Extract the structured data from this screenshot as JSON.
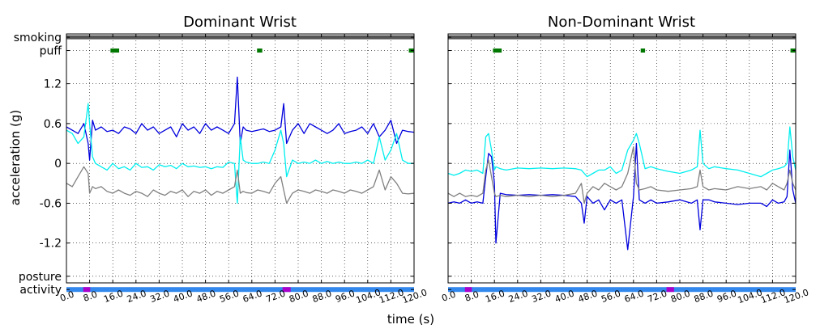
{
  "chart_data": [
    {
      "type": "line",
      "title": "Dominant Wrist",
      "xlabel": "",
      "ylabel": "acceleration (g)",
      "xlim": [
        0,
        120
      ],
      "ylim": [
        -1.8,
        1.95
      ],
      "x_ticks": [
        "0.0",
        "8.0",
        "16.0",
        "24.0",
        "32.0",
        "40.0",
        "48.0",
        "56.0",
        "64.0",
        "72.0",
        "80.0",
        "88.0",
        "96.0",
        "104.0",
        "112.0",
        "120.0"
      ],
      "y_ticks": [
        {
          "v": 1.2,
          "label": "1.2"
        },
        {
          "v": 0.6,
          "label": "0.6"
        },
        {
          "v": 0,
          "label": "0"
        },
        {
          "v": -0.6,
          "label": "-0.6"
        },
        {
          "v": -1.2,
          "label": "-1.2"
        }
      ],
      "band_labels": [
        {
          "v": 1.9,
          "label": "smoking"
        },
        {
          "v": 1.7,
          "label": "puff"
        },
        {
          "v": -1.7,
          "label": "posture"
        },
        {
          "v": -1.9,
          "label": "activity"
        }
      ],
      "grid": true,
      "smoking": {
        "y": 1.9,
        "segments": [
          [
            0,
            120
          ]
        ],
        "color": "#555555"
      },
      "puff": {
        "y": 1.7,
        "segments": [
          [
            15.2,
            18.2
          ],
          [
            65.8,
            67.6
          ],
          [
            118.2,
            120
          ]
        ],
        "color": "#007700"
      },
      "posture": {
        "y": -1.9,
        "segments": [
          [
            5.8,
            8.2
          ],
          [
            74.6,
            77.4
          ]
        ],
        "color": "#aa00cc"
      },
      "activity": {
        "y": -1.9,
        "segments": [
          [
            0,
            120
          ]
        ],
        "color": "#3388ee"
      },
      "series": [
        {
          "color": "#0000dd",
          "x": [
            0,
            2,
            4,
            6,
            7.5,
            8,
            9,
            10,
            12,
            14,
            16,
            18,
            20,
            22,
            24,
            26,
            28,
            30,
            32,
            34,
            36,
            38,
            40,
            42,
            44,
            46,
            48,
            50,
            52,
            54,
            56,
            58,
            59,
            60,
            61,
            62,
            64,
            66,
            68,
            70,
            72,
            74,
            75,
            76,
            78,
            80,
            82,
            84,
            86,
            88,
            90,
            92,
            94,
            96,
            98,
            100,
            102,
            104,
            106,
            108,
            110,
            112,
            114,
            116,
            118,
            120
          ],
          "y": [
            0.55,
            0.5,
            0.45,
            0.6,
            0.3,
            0.05,
            0.65,
            0.5,
            0.55,
            0.48,
            0.5,
            0.45,
            0.55,
            0.52,
            0.45,
            0.6,
            0.5,
            0.55,
            0.45,
            0.5,
            0.55,
            0.4,
            0.6,
            0.5,
            0.55,
            0.45,
            0.6,
            0.5,
            0.55,
            0.5,
            0.45,
            0.6,
            1.3,
            0.3,
            0.55,
            0.5,
            0.48,
            0.5,
            0.52,
            0.48,
            0.5,
            0.55,
            0.9,
            0.3,
            0.5,
            0.6,
            0.45,
            0.6,
            0.55,
            0.5,
            0.45,
            0.5,
            0.6,
            0.45,
            0.48,
            0.5,
            0.55,
            0.45,
            0.6,
            0.4,
            0.5,
            0.65,
            0.3,
            0.5,
            0.48,
            0.47
          ]
        },
        {
          "color": "#00eeee",
          "x": [
            0,
            2,
            4,
            6,
            7.5,
            8,
            9,
            10,
            12,
            14,
            16,
            18,
            20,
            22,
            24,
            26,
            28,
            30,
            32,
            34,
            36,
            38,
            40,
            42,
            44,
            46,
            48,
            50,
            52,
            54,
            56,
            58,
            59,
            60,
            61,
            62,
            64,
            66,
            68,
            70,
            72,
            74,
            75,
            76,
            78,
            80,
            82,
            84,
            86,
            88,
            90,
            92,
            94,
            96,
            98,
            100,
            102,
            104,
            106,
            108,
            110,
            112,
            114,
            116,
            118,
            120
          ],
          "y": [
            0.5,
            0.45,
            0.3,
            0.4,
            0.9,
            0.6,
            0.1,
            0.0,
            -0.05,
            -0.1,
            0.0,
            -0.08,
            -0.05,
            -0.1,
            0.0,
            -0.06,
            -0.05,
            -0.1,
            -0.02,
            -0.05,
            -0.03,
            -0.08,
            0.0,
            -0.05,
            -0.04,
            -0.06,
            -0.05,
            -0.08,
            -0.05,
            -0.06,
            0.02,
            0.0,
            -0.6,
            0.4,
            0.05,
            0.02,
            0.0,
            0.0,
            0.02,
            0.0,
            0.2,
            0.5,
            0.3,
            -0.2,
            0.05,
            0.0,
            0.02,
            0.0,
            0.05,
            0.0,
            0.03,
            0.0,
            0.02,
            0.0,
            0.0,
            0.02,
            0.0,
            0.05,
            0.0,
            0.4,
            0.05,
            0.2,
            0.45,
            0.05,
            0.0,
            0.0
          ]
        },
        {
          "color": "#808080",
          "x": [
            0,
            2,
            4,
            6,
            7.5,
            8,
            9,
            10,
            12,
            14,
            16,
            18,
            20,
            22,
            24,
            26,
            28,
            30,
            32,
            34,
            36,
            38,
            40,
            42,
            44,
            46,
            48,
            50,
            52,
            54,
            56,
            58,
            59,
            60,
            61,
            62,
            64,
            66,
            68,
            70,
            72,
            74,
            75,
            76,
            78,
            80,
            82,
            84,
            86,
            88,
            90,
            92,
            94,
            96,
            98,
            100,
            102,
            104,
            106,
            108,
            110,
            112,
            114,
            116,
            118,
            120
          ],
          "y": [
            -0.3,
            -0.35,
            -0.2,
            -0.05,
            -0.15,
            -0.45,
            -0.35,
            -0.38,
            -0.35,
            -0.42,
            -0.45,
            -0.4,
            -0.45,
            -0.48,
            -0.42,
            -0.45,
            -0.5,
            -0.4,
            -0.45,
            -0.48,
            -0.42,
            -0.45,
            -0.4,
            -0.5,
            -0.42,
            -0.45,
            -0.4,
            -0.48,
            -0.42,
            -0.45,
            -0.4,
            -0.35,
            -0.1,
            -0.45,
            -0.42,
            -0.44,
            -0.45,
            -0.4,
            -0.42,
            -0.45,
            -0.3,
            -0.2,
            -0.4,
            -0.6,
            -0.45,
            -0.4,
            -0.42,
            -0.45,
            -0.4,
            -0.42,
            -0.45,
            -0.4,
            -0.42,
            -0.45,
            -0.4,
            -0.42,
            -0.45,
            -0.4,
            -0.35,
            -0.1,
            -0.4,
            -0.2,
            -0.3,
            -0.45,
            -0.46,
            -0.45
          ]
        }
      ]
    },
    {
      "type": "line",
      "title": "Non-Dominant Wrist",
      "xlabel": "",
      "ylabel": "",
      "xlim": [
        0,
        120
      ],
      "ylim": [
        -1.8,
        1.95
      ],
      "x_ticks": [
        "0.0",
        "8.0",
        "16.0",
        "24.0",
        "32.0",
        "40.0",
        "48.0",
        "56.0",
        "64.0",
        "72.0",
        "80.0",
        "88.0",
        "96.0",
        "104.0",
        "112.0",
        "120.0"
      ],
      "grid": true,
      "smoking": {
        "y": 1.9,
        "segments": [
          [
            0,
            120
          ]
        ],
        "color": "#555555"
      },
      "puff": {
        "y": 1.7,
        "segments": [
          [
            15.5,
            18.5
          ],
          [
            66.5,
            68.0
          ],
          [
            118.2,
            120
          ]
        ],
        "color": "#007700"
      },
      "posture": {
        "y": -1.9,
        "segments": [
          [
            5.8,
            8.2
          ],
          [
            75.4,
            78.0
          ]
        ],
        "color": "#aa00cc"
      },
      "activity": {
        "y": -1.9,
        "segments": [
          [
            0,
            120
          ]
        ],
        "color": "#3388ee"
      },
      "series": [
        {
          "color": "#0000dd",
          "x": [
            0,
            2,
            4,
            6,
            8,
            10,
            12,
            13,
            14,
            15,
            16,
            16.5,
            18,
            20,
            24,
            28,
            32,
            36,
            40,
            44,
            46,
            47,
            48,
            50,
            52,
            54,
            56,
            58,
            60,
            62,
            64,
            65,
            66,
            68,
            70,
            72,
            76,
            80,
            84,
            86,
            87,
            88,
            90,
            92,
            96,
            100,
            104,
            108,
            110,
            112,
            114,
            116,
            117,
            118,
            119,
            120
          ],
          "y": [
            -0.6,
            -0.58,
            -0.6,
            -0.55,
            -0.6,
            -0.58,
            -0.6,
            -0.2,
            0.15,
            0.1,
            -0.3,
            -1.2,
            -0.45,
            -0.47,
            -0.48,
            -0.47,
            -0.48,
            -0.47,
            -0.48,
            -0.5,
            -0.6,
            -0.9,
            -0.5,
            -0.6,
            -0.55,
            -0.7,
            -0.55,
            -0.6,
            -0.55,
            -1.3,
            -0.5,
            0.3,
            -0.55,
            -0.6,
            -0.55,
            -0.6,
            -0.58,
            -0.55,
            -0.6,
            -0.55,
            -1.0,
            -0.55,
            -0.55,
            -0.58,
            -0.6,
            -0.62,
            -0.6,
            -0.6,
            -0.65,
            -0.55,
            -0.6,
            -0.58,
            -0.5,
            0.2,
            -0.4,
            -0.6
          ]
        },
        {
          "color": "#00eeee",
          "x": [
            0,
            2,
            4,
            6,
            8,
            10,
            12,
            13,
            14,
            15,
            16,
            16.5,
            18,
            20,
            24,
            28,
            32,
            36,
            40,
            44,
            46,
            47,
            48,
            50,
            52,
            54,
            56,
            58,
            60,
            62,
            64,
            65,
            66,
            68,
            70,
            72,
            76,
            80,
            84,
            86,
            87,
            88,
            90,
            92,
            96,
            100,
            104,
            108,
            110,
            112,
            114,
            116,
            117,
            118,
            119,
            120
          ],
          "y": [
            -0.15,
            -0.18,
            -0.15,
            -0.1,
            -0.12,
            -0.1,
            -0.15,
            0.4,
            0.45,
            0.2,
            -0.1,
            -0.05,
            -0.08,
            -0.1,
            -0.07,
            -0.08,
            -0.07,
            -0.08,
            -0.07,
            -0.08,
            -0.1,
            -0.15,
            -0.2,
            -0.15,
            -0.1,
            -0.1,
            -0.05,
            -0.15,
            -0.1,
            0.2,
            0.35,
            0.45,
            0.3,
            -0.08,
            -0.05,
            -0.08,
            -0.12,
            -0.15,
            -0.1,
            -0.05,
            0.5,
            0.0,
            -0.08,
            -0.05,
            -0.08,
            -0.1,
            -0.15,
            -0.2,
            -0.15,
            -0.1,
            -0.08,
            -0.05,
            0.0,
            0.55,
            0.1,
            -0.1
          ]
        },
        {
          "color": "#808080",
          "x": [
            0,
            2,
            4,
            6,
            8,
            10,
            12,
            13,
            14,
            15,
            16,
            16.5,
            18,
            20,
            24,
            28,
            32,
            36,
            40,
            44,
            46,
            47,
            48,
            50,
            52,
            54,
            56,
            58,
            60,
            62,
            64,
            65,
            66,
            68,
            70,
            72,
            76,
            80,
            84,
            86,
            87,
            88,
            90,
            92,
            96,
            100,
            104,
            108,
            110,
            112,
            114,
            116,
            117,
            118,
            119,
            120
          ],
          "y": [
            -0.45,
            -0.5,
            -0.45,
            -0.5,
            -0.48,
            -0.5,
            -0.45,
            -0.1,
            0.05,
            -0.2,
            -0.45,
            -0.5,
            -0.48,
            -0.5,
            -0.48,
            -0.5,
            -0.48,
            -0.5,
            -0.48,
            -0.45,
            -0.3,
            -0.6,
            -0.45,
            -0.35,
            -0.4,
            -0.3,
            -0.35,
            -0.4,
            -0.35,
            -0.15,
            0.25,
            -0.3,
            -0.4,
            -0.38,
            -0.35,
            -0.4,
            -0.42,
            -0.4,
            -0.38,
            -0.35,
            -0.1,
            -0.35,
            -0.4,
            -0.38,
            -0.4,
            -0.35,
            -0.38,
            -0.35,
            -0.4,
            -0.3,
            -0.35,
            -0.4,
            -0.3,
            -0.1,
            -0.3,
            -0.4
          ]
        }
      ]
    }
  ]
}
